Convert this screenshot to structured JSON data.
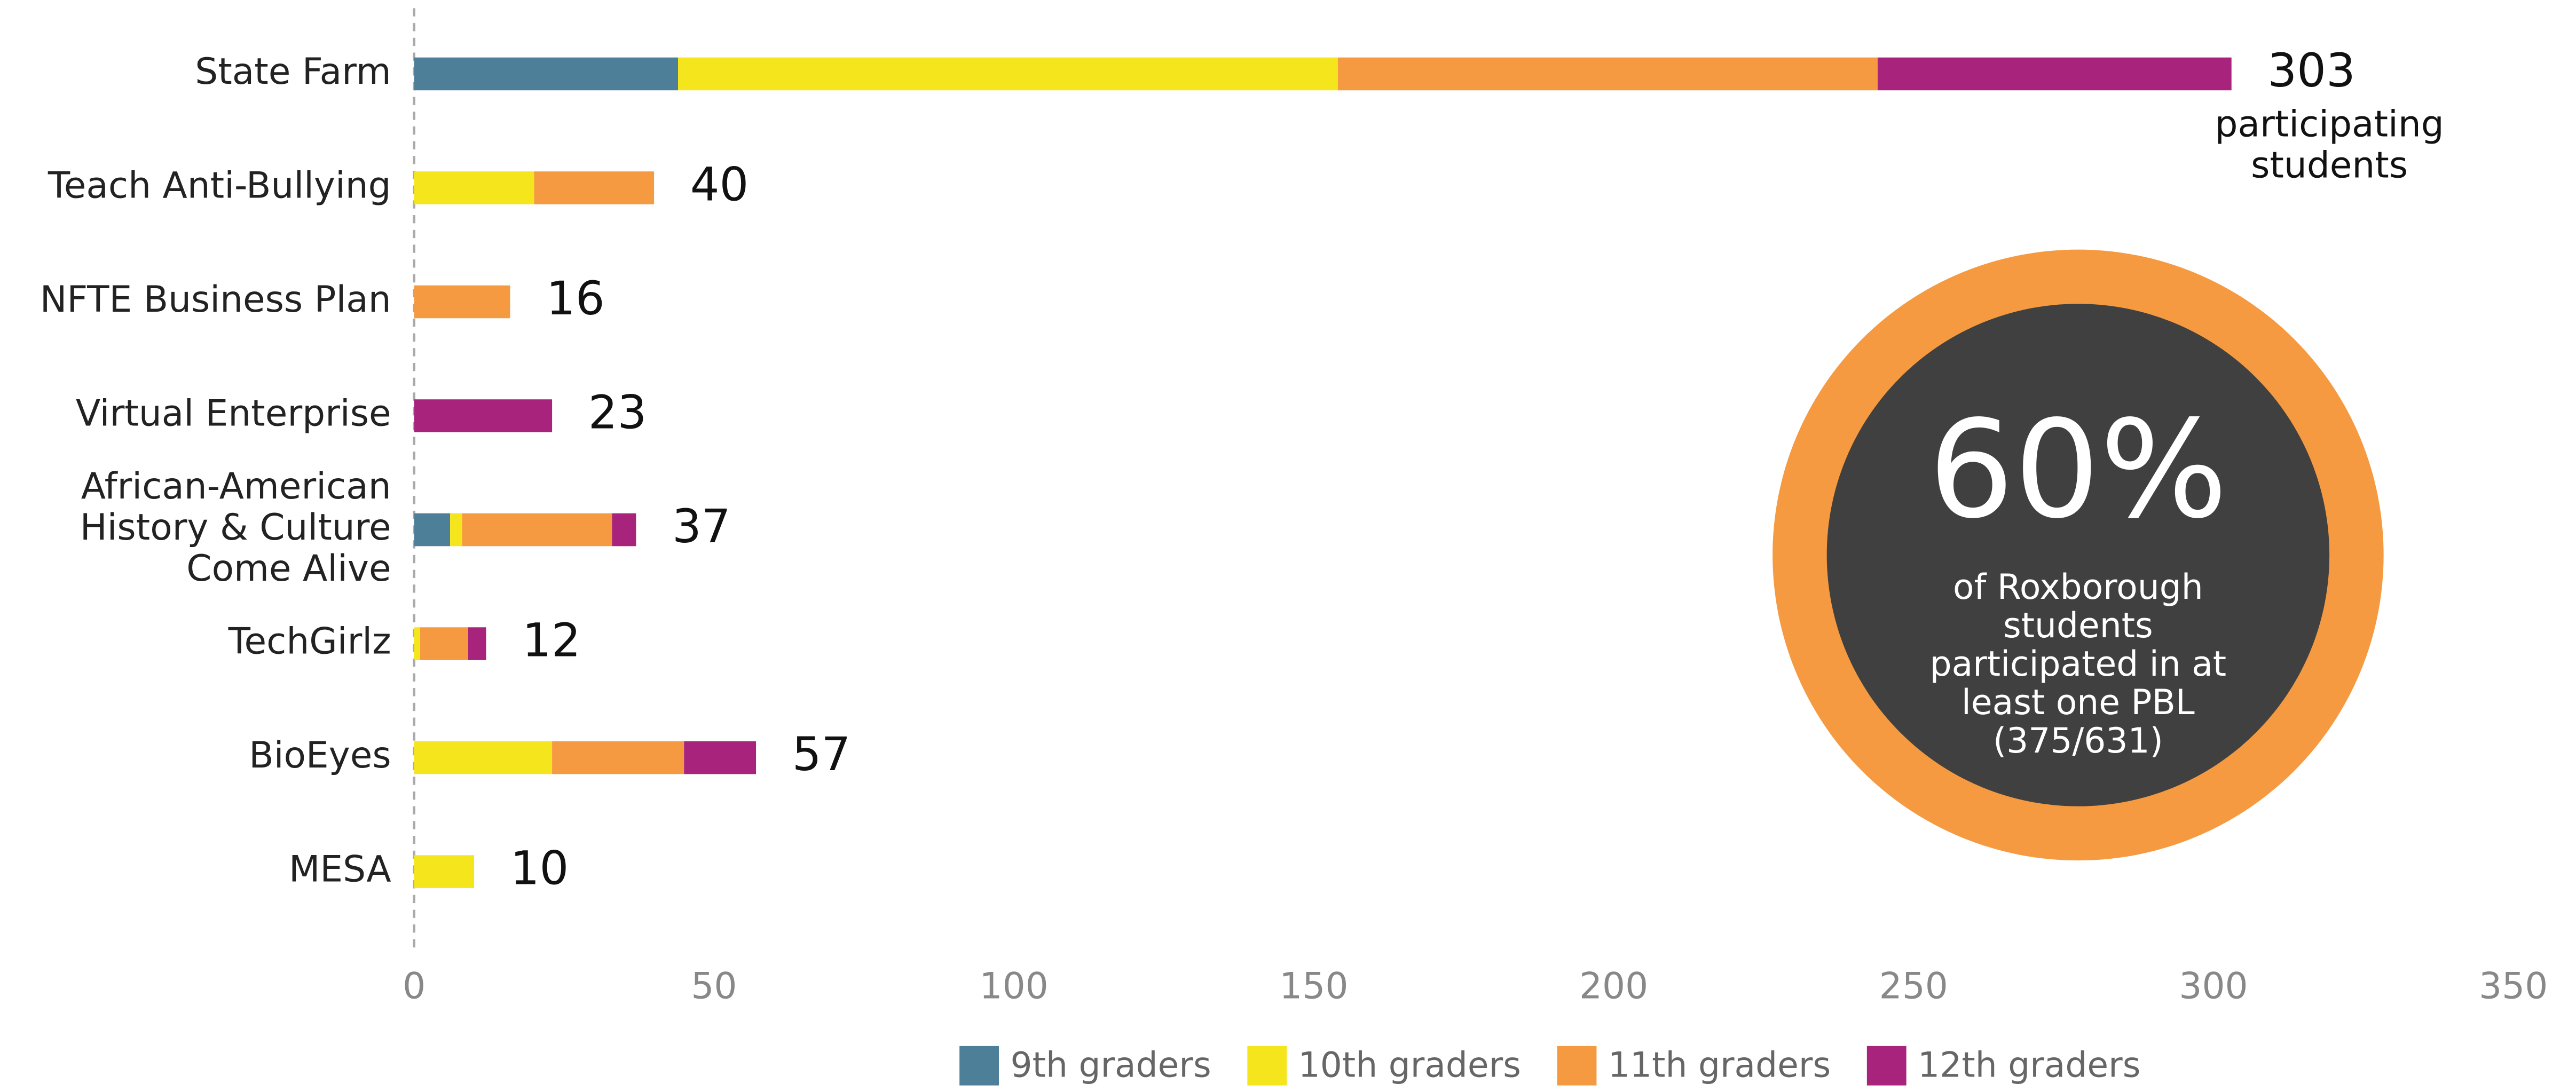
{
  "chart_data": {
    "type": "stacked_bar_horizontal",
    "categories": [
      [
        "State Farm"
      ],
      [
        "Teach Anti-Bullying"
      ],
      [
        "NFTE Business Plan"
      ],
      [
        "Virtual Enterprise"
      ],
      [
        "African-American",
        "History & Culture",
        "Come Alive"
      ],
      [
        "TechGirlz"
      ],
      [
        "BioEyes"
      ],
      [
        "MESA"
      ]
    ],
    "series": [
      {
        "name": "9th graders",
        "color": "#4e7f98",
        "values": [
          44,
          null,
          null,
          null,
          6,
          null,
          null,
          null
        ]
      },
      {
        "name": "10th graders",
        "color": "#f5e51c",
        "values": [
          110,
          20,
          null,
          null,
          2,
          1,
          23,
          10
        ]
      },
      {
        "name": "11th graders",
        "color": "#f59a40",
        "values": [
          90,
          20,
          16,
          null,
          25,
          8,
          22,
          null
        ]
      },
      {
        "name": "12th graders",
        "color": "#a8237b",
        "values": [
          59,
          null,
          null,
          23,
          4,
          3,
          12,
          null
        ]
      }
    ],
    "totals": [
      303,
      40,
      16,
      23,
      37,
      12,
      57,
      10
    ],
    "total_annotation": [
      "participating",
      "students"
    ],
    "xlim": [
      0,
      350
    ],
    "xticks": [
      0,
      50,
      100,
      150,
      200,
      250,
      300,
      350
    ],
    "legend": "bottom",
    "callout": {
      "value_label": "60%",
      "text": [
        "of Roxborough",
        "students",
        "participated in at",
        "least one PBL",
        "(375/631)"
      ],
      "ring_color": "#f59a40",
      "fill_color": "#404040"
    }
  }
}
